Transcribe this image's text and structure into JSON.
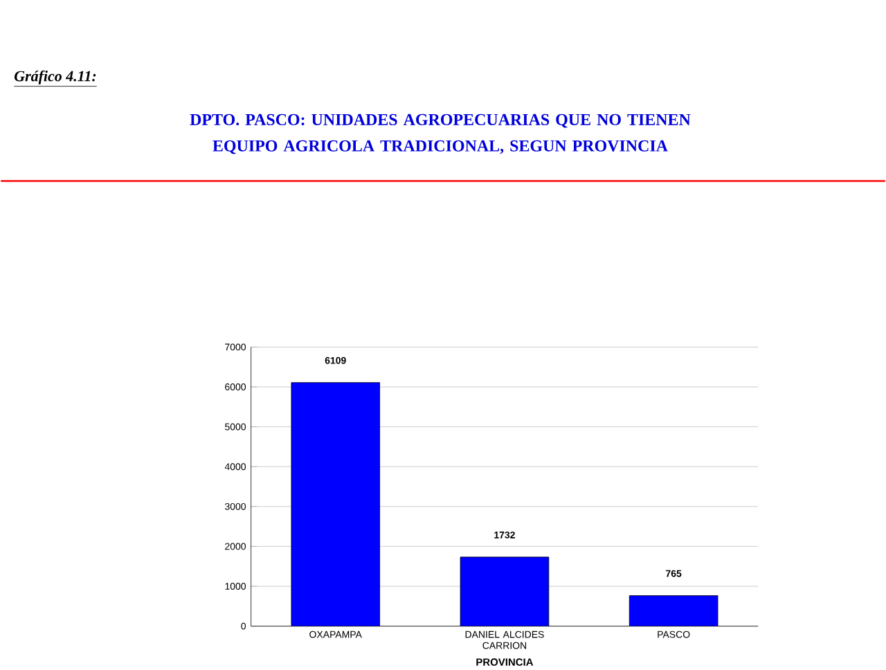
{
  "chart_data": {
    "type": "bar",
    "title": "DPTO. PASCO: UNIDADES AGROPECUARIAS QUE NO TIENEN EQUIPO AGRICOLA TRADICIONAL, SEGUN PROVINCIA",
    "annotations": [
      "Gráfico 4.11:"
    ],
    "xlabel": "PROVINCIA",
    "categories": [
      "OXAPAMPA",
      "DANIEL ALCIDES CARRION",
      "PASCO"
    ],
    "values": [
      6109,
      1732,
      765
    ],
    "color": "#0000ff",
    "ylim": [
      0,
      7000
    ],
    "yticks": [
      0,
      1000,
      2000,
      3000,
      4000,
      5000,
      6000,
      7000
    ],
    "grid": "y",
    "data_labels": true
  }
}
